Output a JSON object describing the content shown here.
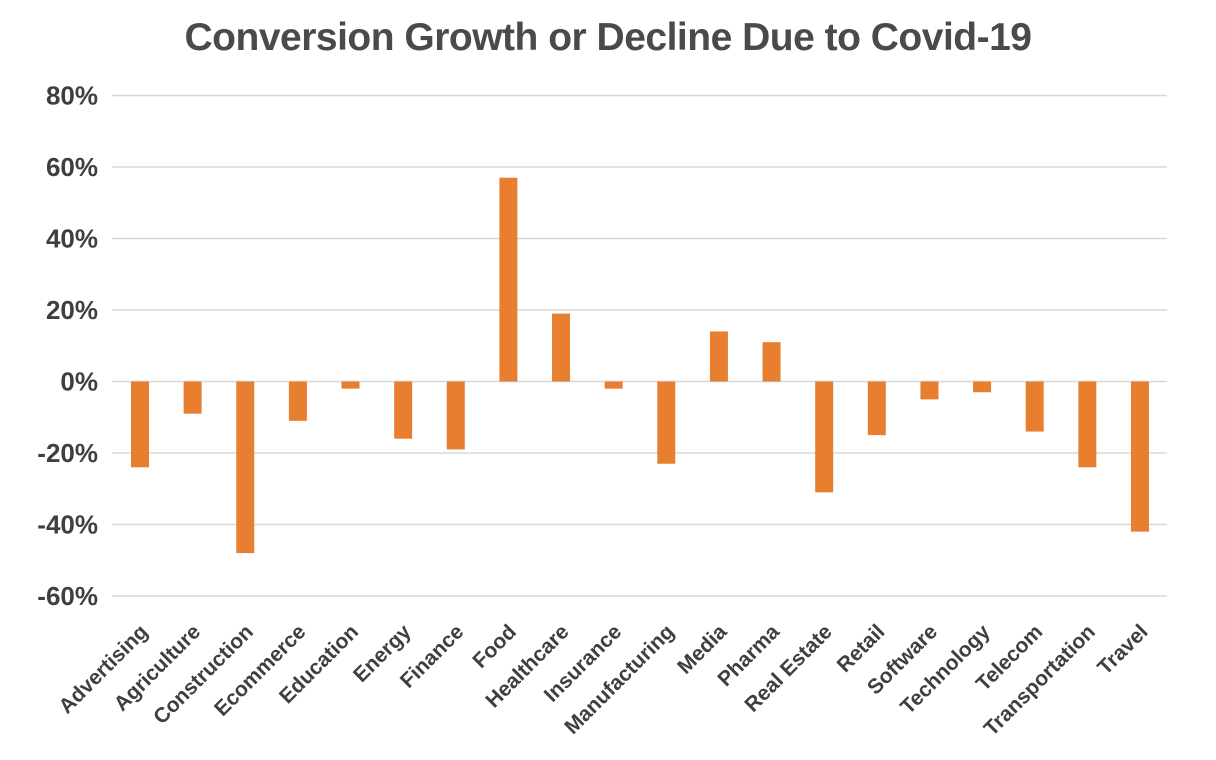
{
  "chart_data": {
    "type": "bar",
    "title": "Conversion Growth or Decline Due to Covid-19",
    "xlabel": "",
    "ylabel": "",
    "categories": [
      "Advertising",
      "Agriculture",
      "Construction",
      "Ecommerce",
      "Education",
      "Energy",
      "Finance",
      "Food",
      "Healthcare",
      "Insurance",
      "Manufacturing",
      "Media",
      "Pharma",
      "Real Estate",
      "Retail",
      "Software",
      "Technology",
      "Telecom",
      "Transportation",
      "Travel"
    ],
    "values": [
      -24,
      -9,
      -48,
      -11,
      -2,
      -16,
      -19,
      57,
      19,
      -2,
      -23,
      14,
      11,
      -31,
      -15,
      -5,
      -3,
      -14,
      -24,
      -42
    ],
    "value_unit": "%",
    "ylim": [
      -60,
      80
    ],
    "ytick_step": 20,
    "ytick_labels": [
      "80%",
      "60%",
      "40%",
      "20%",
      "0%",
      "-20%",
      "-40%",
      "-60%"
    ],
    "grid": "horizontal",
    "legend": "none",
    "bar_color": "#E87E30",
    "gridline_color": "#D8D8D8",
    "axis_text_color": "#3F3F3F",
    "title_color": "#4A4A4A",
    "background_color": "#FFFFFF"
  }
}
